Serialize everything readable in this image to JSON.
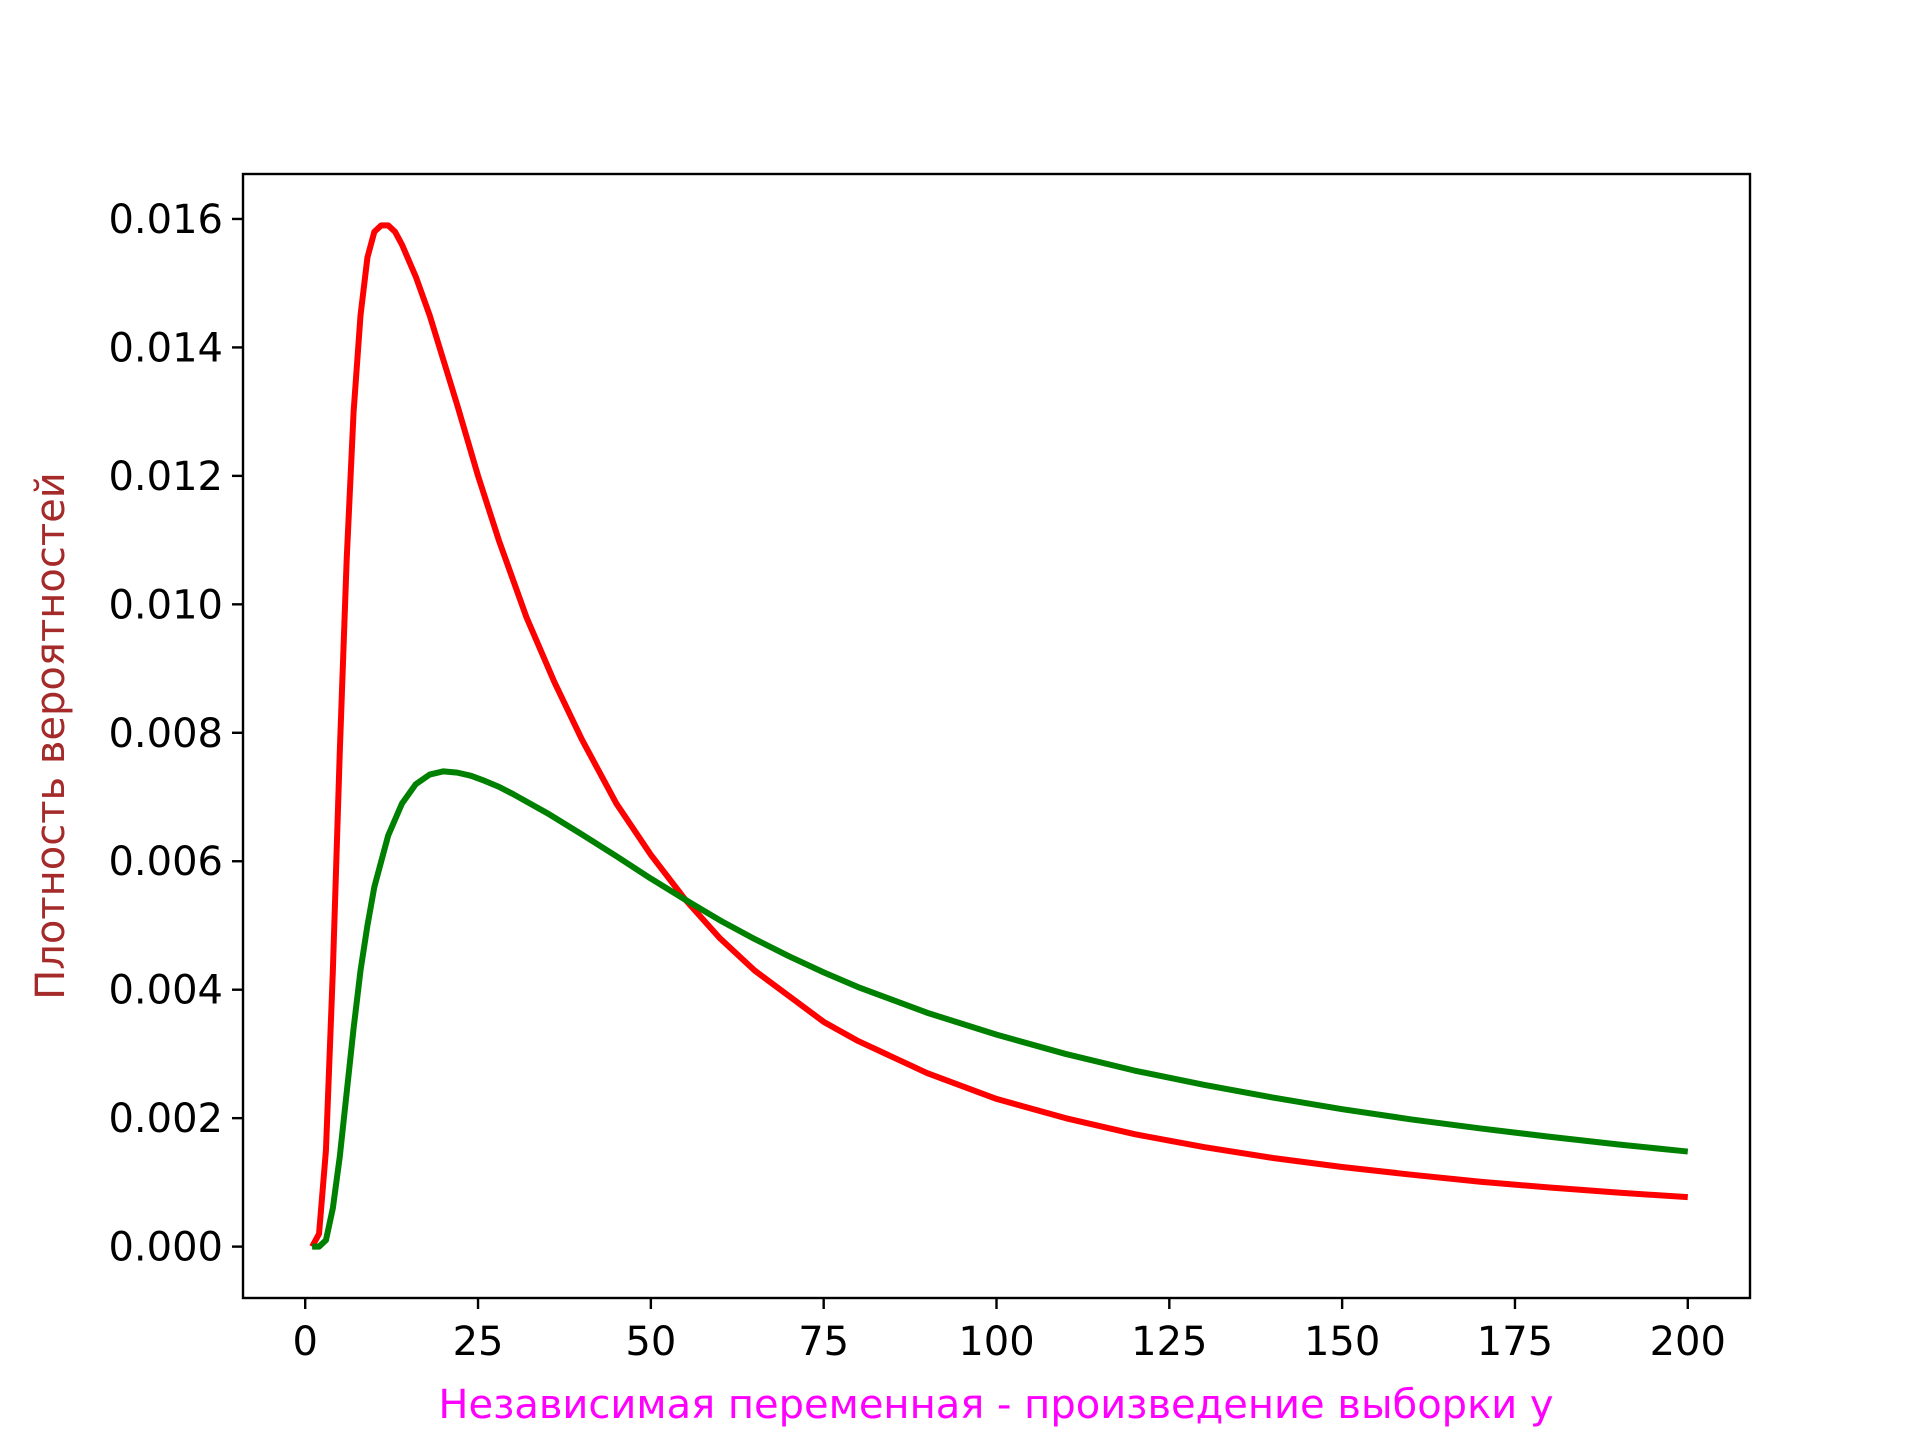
{
  "chart_data": {
    "type": "line",
    "title": "",
    "xlabel": "Независимая переменная - произведение выборки y",
    "ylabel": "Плотность вероятностей",
    "xlabel_color": "#ff00ff",
    "ylabel_color": "#a52a2a",
    "xlim": [
      -9,
      209
    ],
    "ylim": [
      -0.0008,
      0.0167
    ],
    "xticks": [
      0,
      25,
      50,
      75,
      100,
      125,
      150,
      175,
      200
    ],
    "xtick_labels": [
      "0",
      "25",
      "50",
      "75",
      "100",
      "125",
      "150",
      "175",
      "200"
    ],
    "yticks": [
      0.0,
      0.002,
      0.004,
      0.006,
      0.008,
      0.01,
      0.012,
      0.014,
      0.016
    ],
    "ytick_labels": [
      "0.000",
      "0.002",
      "0.004",
      "0.006",
      "0.008",
      "0.010",
      "0.012",
      "0.014",
      "0.016"
    ],
    "grid": false,
    "legend": "none",
    "series": [
      {
        "color": "#ff0000",
        "x": [
          1,
          2,
          3,
          4,
          5,
          6,
          7,
          8,
          9,
          10,
          11,
          12,
          13,
          14,
          16,
          18,
          20,
          22,
          25,
          28,
          32,
          36,
          40,
          45,
          50,
          55,
          60,
          65,
          70,
          75,
          80,
          90,
          100,
          110,
          120,
          130,
          140,
          150,
          160,
          170,
          180,
          190,
          200
        ],
        "y": [
          0.0,
          0.0002,
          0.0015,
          0.0043,
          0.0077,
          0.0107,
          0.013,
          0.0145,
          0.0154,
          0.0158,
          0.0159,
          0.0159,
          0.0158,
          0.0156,
          0.0151,
          0.0145,
          0.0138,
          0.0131,
          0.012,
          0.011,
          0.0098,
          0.0088,
          0.0079,
          0.0069,
          0.0061,
          0.0054,
          0.0048,
          0.0043,
          0.0039,
          0.0035,
          0.0032,
          0.0027,
          0.0023,
          0.002,
          0.00175,
          0.00155,
          0.00138,
          0.00124,
          0.00112,
          0.00101,
          0.00092,
          0.00084,
          0.00077
        ]
      },
      {
        "color": "#008000",
        "x": [
          1,
          2,
          3,
          4,
          5,
          6,
          7,
          8,
          9,
          10,
          12,
          14,
          16,
          18,
          20,
          22,
          24,
          26,
          28,
          30,
          35,
          40,
          45,
          50,
          55,
          60,
          65,
          70,
          75,
          80,
          90,
          100,
          110,
          120,
          130,
          140,
          150,
          160,
          170,
          180,
          190,
          200
        ],
        "y": [
          0.0,
          0.0,
          0.0001,
          0.0006,
          0.0014,
          0.0024,
          0.0034,
          0.0043,
          0.005,
          0.0056,
          0.0064,
          0.0069,
          0.0072,
          0.00735,
          0.0074,
          0.00738,
          0.00733,
          0.00725,
          0.00716,
          0.00705,
          0.00675,
          0.00642,
          0.00608,
          0.00573,
          0.0054,
          0.00508,
          0.00479,
          0.00452,
          0.00427,
          0.00404,
          0.00364,
          0.0033,
          0.003,
          0.00274,
          0.00252,
          0.00232,
          0.00214,
          0.00198,
          0.00184,
          0.00171,
          0.00159,
          0.00148
        ]
      }
    ]
  }
}
